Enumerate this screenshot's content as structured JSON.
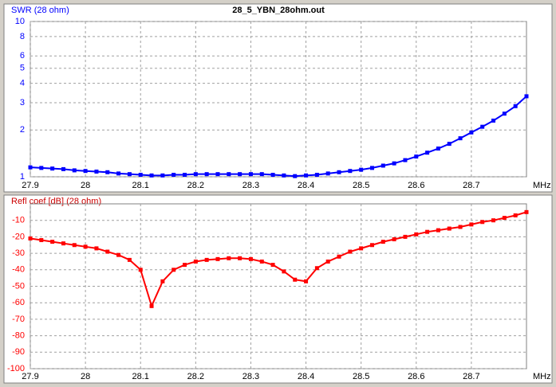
{
  "chart_data": [
    {
      "type": "line",
      "title": "28_5_YBN_28ohm.out",
      "y_label": "SWR (28 ohm)",
      "x_label": "MHz",
      "yscale": "log",
      "grid": true,
      "color": "#0000ff",
      "x": [
        27.9,
        27.92,
        27.94,
        27.96,
        27.98,
        28,
        28.02,
        28.04,
        28.06,
        28.08,
        28.1,
        28.12,
        28.14,
        28.16,
        28.18,
        28.2,
        28.22,
        28.24,
        28.26,
        28.28,
        28.3,
        28.32,
        28.34,
        28.36,
        28.38,
        28.4,
        28.42,
        28.44,
        28.46,
        28.48,
        28.5,
        28.52,
        28.54,
        28.56,
        28.58,
        28.6,
        28.62,
        28.64,
        28.66,
        28.68,
        28.7,
        28.72,
        28.74,
        28.76,
        28.78,
        28.8
      ],
      "values": [
        1.15,
        1.14,
        1.13,
        1.12,
        1.1,
        1.09,
        1.08,
        1.07,
        1.05,
        1.04,
        1.03,
        1.02,
        1.02,
        1.03,
        1.03,
        1.04,
        1.04,
        1.04,
        1.04,
        1.04,
        1.04,
        1.04,
        1.03,
        1.02,
        1.01,
        1.02,
        1.03,
        1.05,
        1.07,
        1.09,
        1.11,
        1.14,
        1.18,
        1.22,
        1.28,
        1.35,
        1.43,
        1.52,
        1.63,
        1.77,
        1.93,
        2.1,
        2.3,
        2.55,
        2.85,
        3.3
      ],
      "xlim": [
        27.9,
        28.8
      ],
      "xticks": [
        27.9,
        28,
        28.1,
        28.2,
        28.3,
        28.4,
        28.5,
        28.6,
        28.7
      ],
      "ylim": [
        1,
        10
      ],
      "yticks": [
        1,
        2,
        3,
        4,
        5,
        6,
        8,
        10
      ]
    },
    {
      "type": "line",
      "y_label": "Refl coef [dB] (28 ohm)",
      "x_label": "MHz",
      "grid": true,
      "color": "#ff0000",
      "x": [
        27.9,
        27.92,
        27.94,
        27.96,
        27.98,
        28,
        28.02,
        28.04,
        28.06,
        28.08,
        28.1,
        28.12,
        28.14,
        28.16,
        28.18,
        28.2,
        28.22,
        28.24,
        28.26,
        28.28,
        28.3,
        28.32,
        28.34,
        28.36,
        28.38,
        28.4,
        28.42,
        28.44,
        28.46,
        28.48,
        28.5,
        28.52,
        28.54,
        28.56,
        28.58,
        28.6,
        28.62,
        28.64,
        28.66,
        28.68,
        28.7,
        28.72,
        28.74,
        28.76,
        28.78,
        28.8
      ],
      "values": [
        -21,
        -22,
        -23,
        -24,
        -25,
        -26,
        -27,
        -29,
        -31,
        -34,
        -40,
        -62,
        -47,
        -40,
        -37,
        -35,
        -34,
        -33.5,
        -33,
        -33,
        -33.5,
        -35,
        -37,
        -41,
        -46,
        -47,
        -39,
        -35,
        -32,
        -29,
        -27,
        -25,
        -23,
        -21.5,
        -20,
        -18.5,
        -17,
        -16,
        -15,
        -14,
        -12.5,
        -11,
        -10,
        -8.5,
        -7,
        -5
      ],
      "xlim": [
        27.9,
        28.8
      ],
      "xticks": [
        27.9,
        28,
        28.1,
        28.2,
        28.3,
        28.4,
        28.5,
        28.6,
        28.7
      ],
      "ylim": [
        -100,
        0
      ],
      "yticks": [
        -100,
        -90,
        -80,
        -70,
        -60,
        -50,
        -40,
        -30,
        -20,
        -10
      ]
    }
  ]
}
